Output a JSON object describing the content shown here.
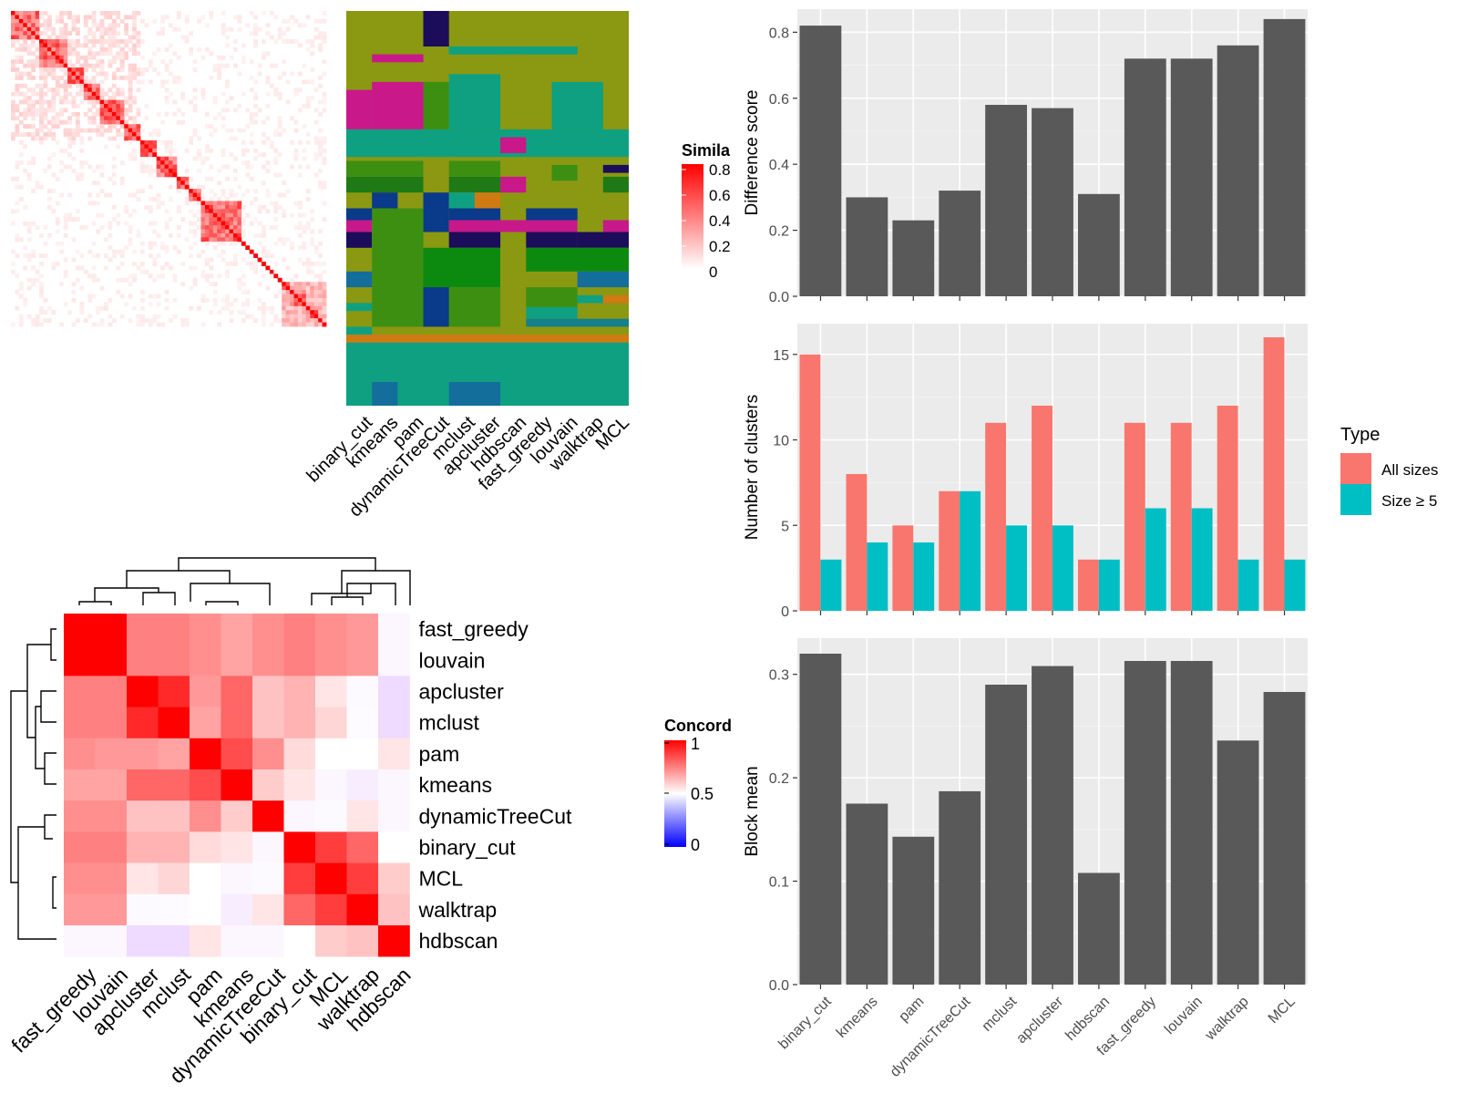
{
  "colors": {
    "bar": "#595959",
    "panel_bg": "#ebebeb",
    "all_sizes": "#f8766d",
    "size_ge5": "#00bfc4",
    "heat_high": "#ff0000",
    "heat_mid": "#ffffff",
    "heat_low": "#0000ff"
  },
  "methods": [
    "binary_cut",
    "kmeans",
    "pam",
    "dynamicTreeCut",
    "mclust",
    "apcluster",
    "hdbscan",
    "fast_greedy",
    "louvain",
    "walktrap",
    "MCL"
  ],
  "similarity_legend": {
    "title": "Simila",
    "ticks": [
      "0.8",
      "0.6",
      "0.4",
      "0.2",
      "0"
    ]
  },
  "concordance": {
    "legend_title": "Concord",
    "legend_ticks": [
      "1",
      "0.5",
      "0"
    ],
    "order": [
      "fast_greedy",
      "louvain",
      "apcluster",
      "mclust",
      "pam",
      "kmeans",
      "dynamicTreeCut",
      "binary_cut",
      "MCL",
      "walktrap",
      "hdbscan"
    ],
    "matrix": [
      [
        1.0,
        1.0,
        0.75,
        0.75,
        0.72,
        0.68,
        0.72,
        0.75,
        0.72,
        0.7,
        0.45
      ],
      [
        1.0,
        1.0,
        0.75,
        0.75,
        0.72,
        0.68,
        0.72,
        0.75,
        0.72,
        0.7,
        0.45
      ],
      [
        0.75,
        0.75,
        1.0,
        0.92,
        0.7,
        0.8,
        0.62,
        0.65,
        0.55,
        0.47,
        0.3
      ],
      [
        0.75,
        0.75,
        0.92,
        1.0,
        0.68,
        0.8,
        0.62,
        0.65,
        0.58,
        0.48,
        0.3
      ],
      [
        0.72,
        0.7,
        0.7,
        0.68,
        1.0,
        0.85,
        0.72,
        0.57,
        0.5,
        0.5,
        0.55
      ],
      [
        0.68,
        0.68,
        0.8,
        0.8,
        0.85,
        1.0,
        0.6,
        0.55,
        0.45,
        0.4,
        0.45
      ],
      [
        0.72,
        0.72,
        0.62,
        0.62,
        0.72,
        0.6,
        1.0,
        0.45,
        0.47,
        0.55,
        0.45
      ],
      [
        0.75,
        0.75,
        0.65,
        0.65,
        0.57,
        0.55,
        0.45,
        1.0,
        0.88,
        0.8,
        0.5
      ],
      [
        0.72,
        0.72,
        0.55,
        0.58,
        0.5,
        0.45,
        0.47,
        0.88,
        1.0,
        0.88,
        0.6
      ],
      [
        0.7,
        0.7,
        0.47,
        0.48,
        0.5,
        0.4,
        0.55,
        0.8,
        0.88,
        1.0,
        0.62
      ],
      [
        0.45,
        0.45,
        0.3,
        0.3,
        0.55,
        0.45,
        0.45,
        0.5,
        0.6,
        0.62,
        1.0
      ]
    ]
  },
  "chart_data": [
    {
      "type": "heatmap",
      "title": "",
      "note": "similarity matrix heatmap (top-left) with cluster membership panel for the methods"
    },
    {
      "type": "bar",
      "categories": [
        "binary_cut",
        "kmeans",
        "pam",
        "dynamicTreeCut",
        "mclust",
        "apcluster",
        "hdbscan",
        "fast_greedy",
        "louvain",
        "walktrap",
        "MCL"
      ],
      "values": [
        0.82,
        0.3,
        0.23,
        0.32,
        0.58,
        0.57,
        0.31,
        0.72,
        0.72,
        0.76,
        0.84
      ],
      "xlabel": "",
      "ylabel": "Difference score",
      "ylim": [
        0,
        0.87
      ],
      "yticks": [
        0.0,
        0.2,
        0.4,
        0.6,
        0.8
      ],
      "grid": true
    },
    {
      "type": "bar",
      "categories": [
        "binary_cut",
        "kmeans",
        "pam",
        "dynamicTreeCut",
        "mclust",
        "apcluster",
        "hdbscan",
        "fast_greedy",
        "louvain",
        "walktrap",
        "MCL"
      ],
      "series": [
        {
          "name": "All sizes",
          "values": [
            15,
            8,
            5,
            7,
            11,
            12,
            3,
            11,
            11,
            12,
            16
          ]
        },
        {
          "name": "Size ≥ 5",
          "values": [
            3,
            4,
            4,
            7,
            5,
            5,
            3,
            6,
            6,
            3,
            3
          ]
        }
      ],
      "xlabel": "",
      "ylabel": "Number of clusters",
      "ylim": [
        0,
        16.8
      ],
      "yticks": [
        0,
        5,
        10,
        15
      ],
      "legend_title": "Type",
      "legend_position": "right",
      "grid": true
    },
    {
      "type": "bar",
      "categories": [
        "binary_cut",
        "kmeans",
        "pam",
        "dynamicTreeCut",
        "mclust",
        "apcluster",
        "hdbscan",
        "fast_greedy",
        "louvain",
        "walktrap",
        "MCL"
      ],
      "values": [
        0.32,
        0.175,
        0.143,
        0.187,
        0.29,
        0.308,
        0.108,
        0.313,
        0.313,
        0.236,
        0.283
      ],
      "xlabel": "",
      "ylabel": "Block mean",
      "ylim": [
        0,
        0.335
      ],
      "yticks": [
        0.0,
        0.1,
        0.2,
        0.3
      ],
      "grid": true
    }
  ]
}
